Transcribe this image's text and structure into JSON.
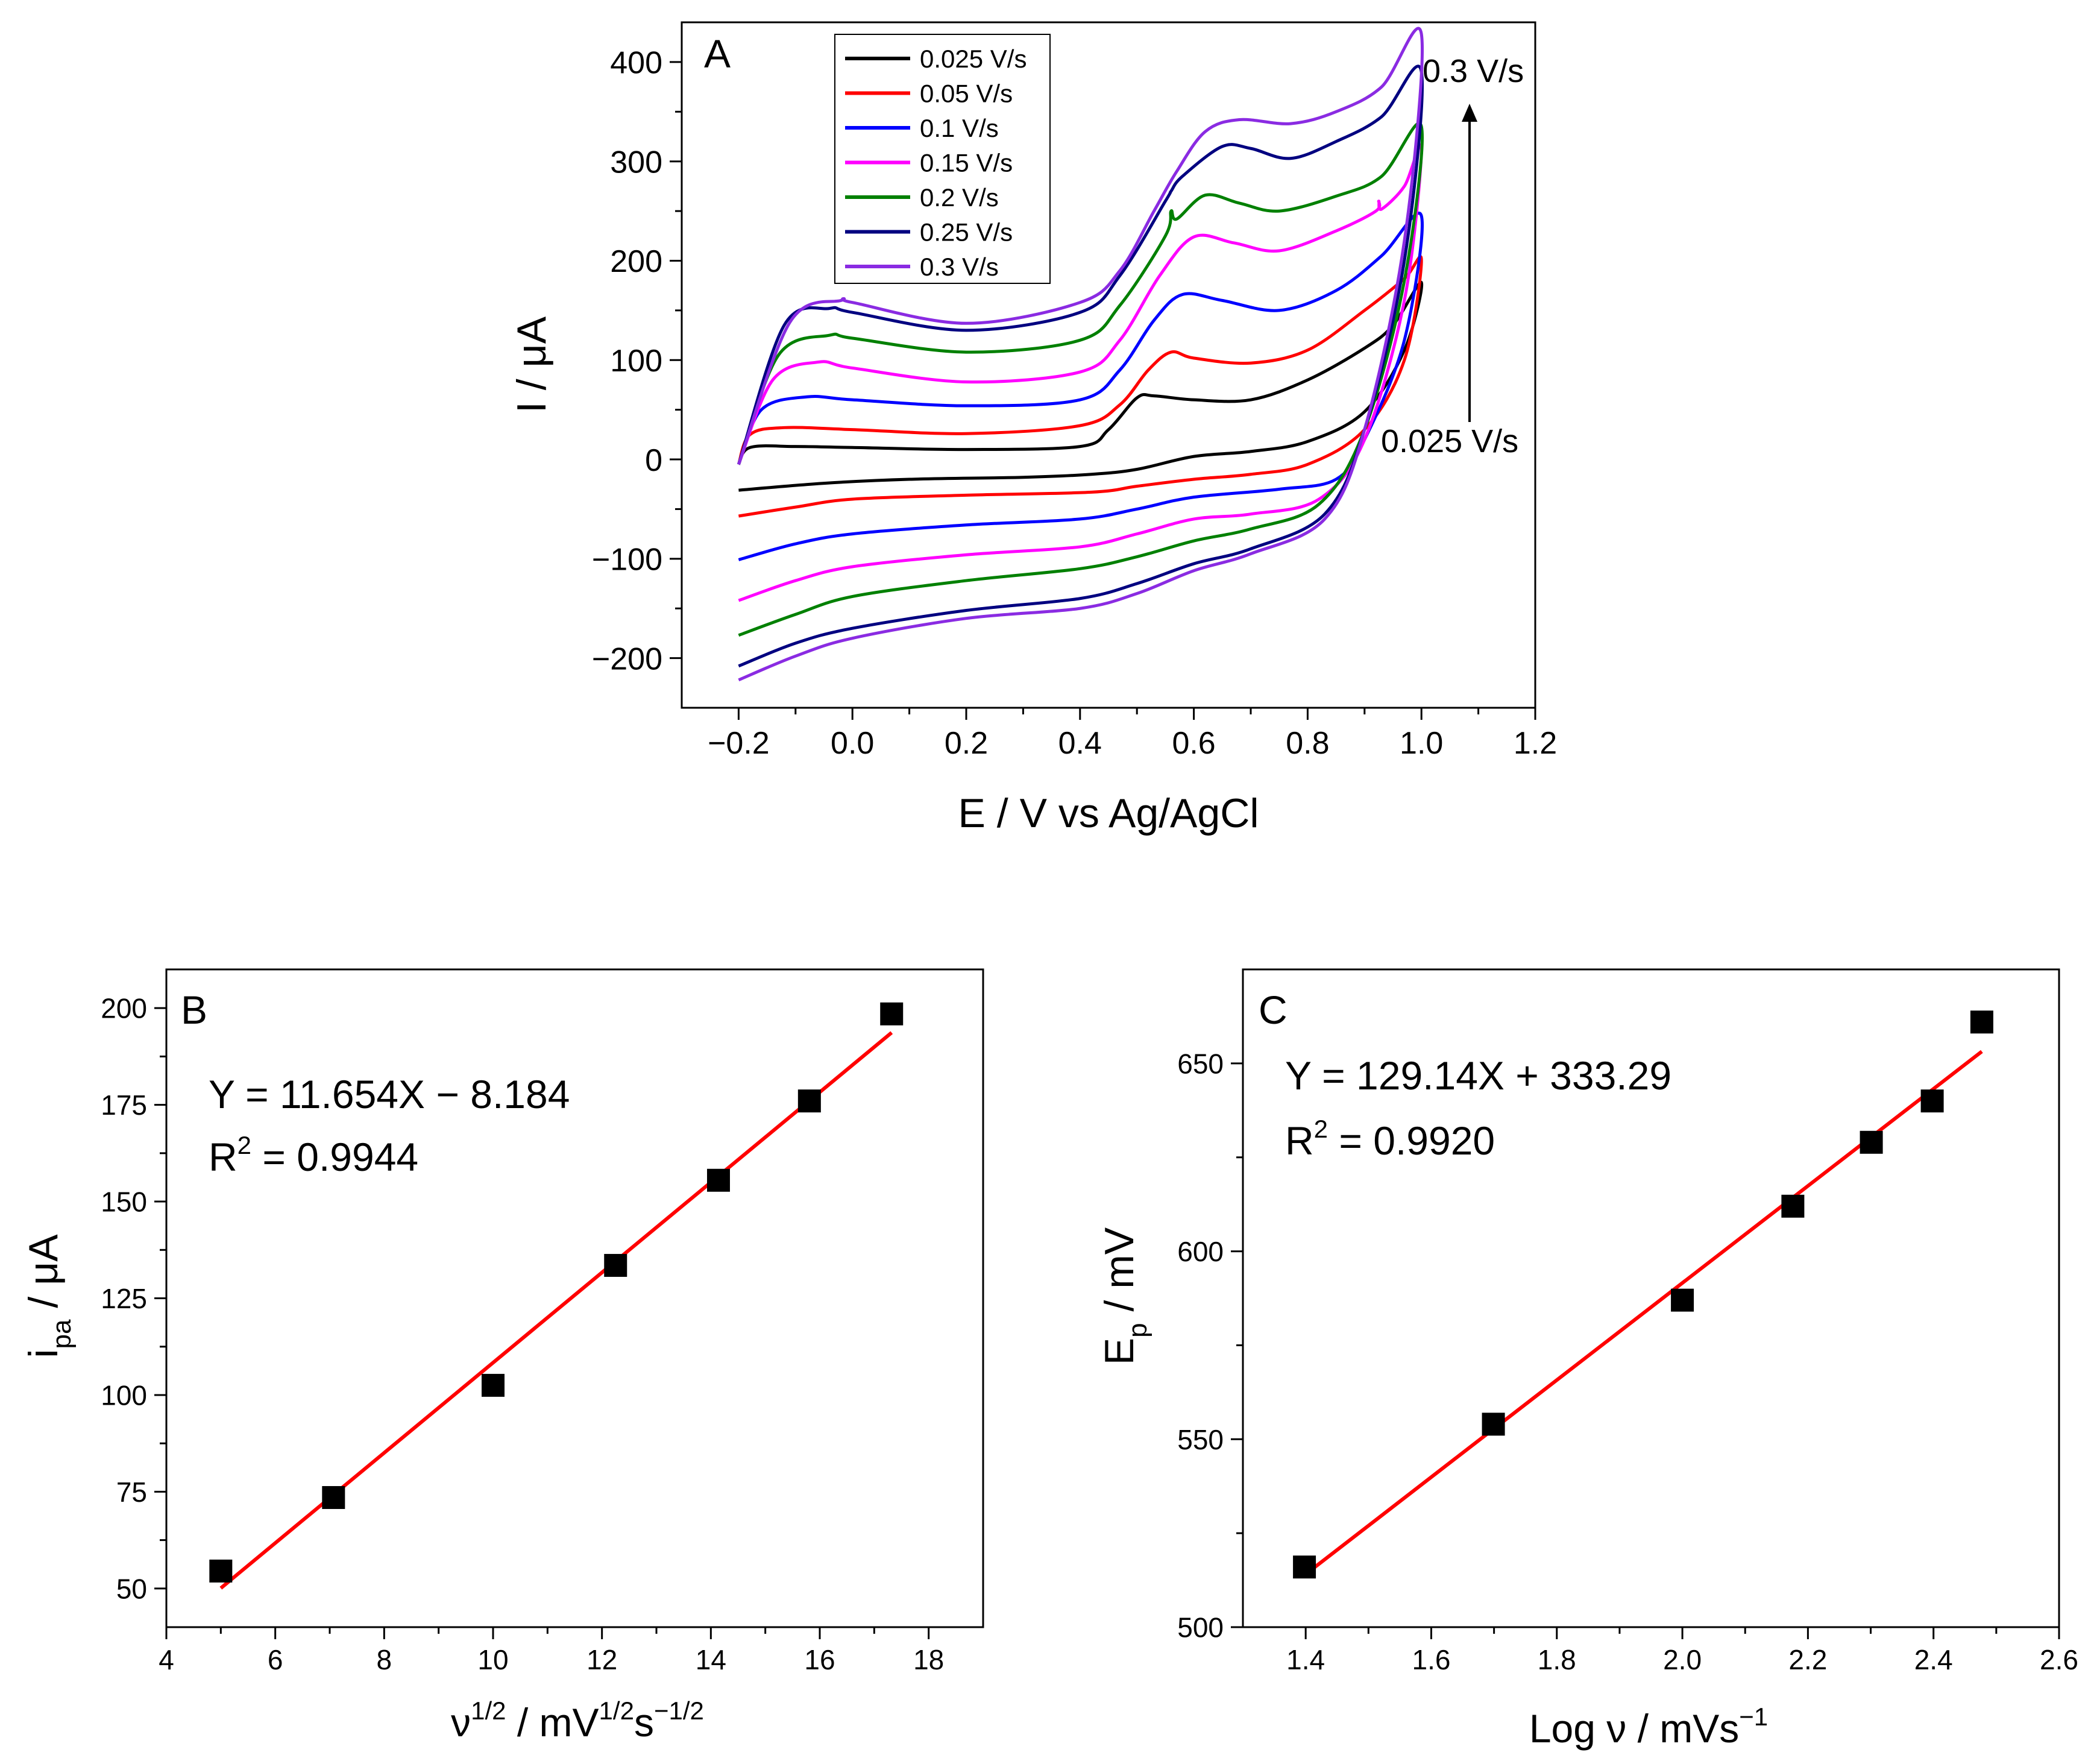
{
  "chart_data": [
    {
      "id": "A",
      "type": "line",
      "panel_label": "A",
      "xlabel": "E / V vs Ag/AgCl",
      "ylabel": "I / μA",
      "xlim": [
        -0.3,
        1.2
      ],
      "ylim": [
        -250,
        440
      ],
      "xticks": [
        -0.2,
        0.0,
        0.2,
        0.4,
        0.6,
        0.8,
        1.0,
        1.2
      ],
      "xtick_labels": [
        "−0.2",
        "0.0",
        "0.2",
        "0.4",
        "0.6",
        "0.8",
        "1.0",
        "1.2"
      ],
      "yticks": [
        -200,
        -100,
        0,
        100,
        200,
        300,
        400
      ],
      "ytick_labels": [
        "−200",
        "−100",
        "0",
        "100",
        "200",
        "300",
        "400"
      ],
      "legend_position": "top-left",
      "annotations": {
        "top": "0.3 V/s",
        "bottom": "0.025 V/s"
      },
      "series": [
        {
          "name": "0.025 V/s",
          "color": "#000000",
          "fwd": [
            [
              -0.2,
              -5
            ],
            [
              -0.18,
              12
            ],
            [
              -0.1,
              13
            ],
            [
              0.0,
              12
            ],
            [
              0.2,
              10
            ],
            [
              0.4,
              13
            ],
            [
              0.45,
              30
            ],
            [
              0.5,
              62
            ],
            [
              0.53,
              64
            ],
            [
              0.6,
              60
            ],
            [
              0.7,
              60
            ],
            [
              0.8,
              80
            ],
            [
              0.9,
              112
            ],
            [
              0.95,
              135
            ],
            [
              1.0,
              178
            ]
          ],
          "rev": [
            [
              1.0,
              178
            ],
            [
              0.97,
              110
            ],
            [
              0.9,
              48
            ],
            [
              0.8,
              18
            ],
            [
              0.7,
              8
            ],
            [
              0.6,
              3
            ],
            [
              0.5,
              -10
            ],
            [
              0.42,
              -15
            ],
            [
              0.3,
              -18
            ],
            [
              0.1,
              -20
            ],
            [
              -0.05,
              -24
            ],
            [
              -0.2,
              -31
            ]
          ]
        },
        {
          "name": "0.05 V/s",
          "color": "#ff0000",
          "fwd": [
            [
              -0.2,
              -5
            ],
            [
              -0.18,
              25
            ],
            [
              -0.12,
              32
            ],
            [
              0.0,
              30
            ],
            [
              0.2,
              26
            ],
            [
              0.4,
              34
            ],
            [
              0.47,
              55
            ],
            [
              0.52,
              90
            ],
            [
              0.56,
              108
            ],
            [
              0.6,
              102
            ],
            [
              0.7,
              97
            ],
            [
              0.8,
              110
            ],
            [
              0.9,
              150
            ],
            [
              0.97,
              182
            ],
            [
              1.0,
              200
            ]
          ],
          "rev": [
            [
              1.0,
              200
            ],
            [
              0.97,
              100
            ],
            [
              0.9,
              30
            ],
            [
              0.8,
              -5
            ],
            [
              0.7,
              -15
            ],
            [
              0.6,
              -20
            ],
            [
              0.5,
              -27
            ],
            [
              0.42,
              -33
            ],
            [
              0.2,
              -36
            ],
            [
              0.0,
              -40
            ],
            [
              -0.1,
              -48
            ],
            [
              -0.2,
              -57
            ]
          ]
        },
        {
          "name": "0.1 V/s",
          "color": "#0000ff",
          "fwd": [
            [
              -0.2,
              -5
            ],
            [
              -0.16,
              50
            ],
            [
              -0.08,
              63
            ],
            [
              0.0,
              60
            ],
            [
              0.2,
              54
            ],
            [
              0.4,
              60
            ],
            [
              0.47,
              90
            ],
            [
              0.53,
              140
            ],
            [
              0.58,
              166
            ],
            [
              0.65,
              160
            ],
            [
              0.75,
              150
            ],
            [
              0.85,
              170
            ],
            [
              0.93,
              205
            ],
            [
              1.0,
              245
            ]
          ],
          "rev": [
            [
              1.0,
              245
            ],
            [
              0.97,
              120
            ],
            [
              0.9,
              20
            ],
            [
              0.85,
              -20
            ],
            [
              0.75,
              -30
            ],
            [
              0.6,
              -38
            ],
            [
              0.5,
              -50
            ],
            [
              0.4,
              -60
            ],
            [
              0.2,
              -66
            ],
            [
              0.0,
              -75
            ],
            [
              -0.1,
              -85
            ],
            [
              -0.2,
              -101
            ]
          ]
        },
        {
          "name": "0.15 V/s",
          "color": "#ff00ff",
          "fwd": [
            [
              -0.2,
              -5
            ],
            [
              -0.14,
              80
            ],
            [
              -0.06,
              98
            ],
            [
              0.0,
              92
            ],
            [
              0.2,
              78
            ],
            [
              0.4,
              88
            ],
            [
              0.47,
              120
            ],
            [
              0.54,
              185
            ],
            [
              0.6,
              224
            ],
            [
              0.67,
              218
            ],
            [
              0.75,
              210
            ],
            [
              0.85,
              230
            ],
            [
              0.92,
              250
            ],
            [
              0.925,
              260
            ],
            [
              0.93,
              252
            ],
            [
              0.97,
              275
            ],
            [
              1.0,
              312
            ]
          ],
          "rev": [
            [
              1.0,
              312
            ],
            [
              0.97,
              160
            ],
            [
              0.9,
              20
            ],
            [
              0.82,
              -40
            ],
            [
              0.7,
              -55
            ],
            [
              0.6,
              -60
            ],
            [
              0.5,
              -75
            ],
            [
              0.4,
              -88
            ],
            [
              0.2,
              -96
            ],
            [
              0.0,
              -108
            ],
            [
              -0.1,
              -122
            ],
            [
              -0.2,
              -142
            ]
          ]
        },
        {
          "name": "0.2 V/s",
          "color": "#008000",
          "fwd": [
            [
              -0.2,
              -5
            ],
            [
              -0.13,
              105
            ],
            [
              -0.04,
              125
            ],
            [
              0.0,
              122
            ],
            [
              0.2,
              108
            ],
            [
              0.4,
              120
            ],
            [
              0.47,
              155
            ],
            [
              0.55,
              225
            ],
            [
              0.56,
              250
            ],
            [
              0.57,
              242
            ],
            [
              0.62,
              266
            ],
            [
              0.68,
              258
            ],
            [
              0.75,
              250
            ],
            [
              0.85,
              265
            ],
            [
              0.93,
              285
            ],
            [
              1.0,
              335
            ]
          ],
          "rev": [
            [
              1.0,
              335
            ],
            [
              0.97,
              180
            ],
            [
              0.9,
              30
            ],
            [
              0.82,
              -45
            ],
            [
              0.7,
              -70
            ],
            [
              0.6,
              -82
            ],
            [
              0.5,
              -98
            ],
            [
              0.4,
              -110
            ],
            [
              0.2,
              -122
            ],
            [
              0.0,
              -138
            ],
            [
              -0.1,
              -156
            ],
            [
              -0.2,
              -177
            ]
          ]
        },
        {
          "name": "0.25 V/s",
          "color": "#000080",
          "fwd": [
            [
              -0.2,
              -5
            ],
            [
              -0.12,
              135
            ],
            [
              -0.04,
              152
            ],
            [
              0.0,
              148
            ],
            [
              0.2,
              130
            ],
            [
              0.4,
              148
            ],
            [
              0.47,
              185
            ],
            [
              0.55,
              260
            ],
            [
              0.56,
              270
            ],
            [
              0.58,
              285
            ],
            [
              0.65,
              315
            ],
            [
              0.7,
              313
            ],
            [
              0.77,
              303
            ],
            [
              0.85,
              320
            ],
            [
              0.93,
              345
            ],
            [
              1.0,
              390
            ]
          ],
          "rev": [
            [
              1.0,
              390
            ],
            [
              0.97,
              200
            ],
            [
              0.9,
              30
            ],
            [
              0.83,
              -55
            ],
            [
              0.7,
              -90
            ],
            [
              0.6,
              -105
            ],
            [
              0.5,
              -125
            ],
            [
              0.4,
              -140
            ],
            [
              0.2,
              -152
            ],
            [
              0.0,
              -170
            ],
            [
              -0.1,
              -185
            ],
            [
              -0.2,
              -208
            ]
          ]
        },
        {
          "name": "0.3 V/s",
          "color": "#8a2be2",
          "fwd": [
            [
              -0.2,
              -5
            ],
            [
              -0.11,
              138
            ],
            [
              -0.02,
              160
            ],
            [
              0.0,
              158
            ],
            [
              0.2,
              137
            ],
            [
              0.4,
              158
            ],
            [
              0.47,
              190
            ],
            [
              0.53,
              250
            ],
            [
              0.57,
              290
            ],
            [
              0.62,
              330
            ],
            [
              0.68,
              342
            ],
            [
              0.77,
              338
            ],
            [
              0.85,
              350
            ],
            [
              0.93,
              375
            ],
            [
              1.0,
              428
            ]
          ],
          "rev": [
            [
              1.0,
              428
            ],
            [
              0.97,
              220
            ],
            [
              0.9,
              30
            ],
            [
              0.83,
              -60
            ],
            [
              0.7,
              -95
            ],
            [
              0.6,
              -112
            ],
            [
              0.5,
              -135
            ],
            [
              0.4,
              -150
            ],
            [
              0.2,
              -160
            ],
            [
              0.0,
              -180
            ],
            [
              -0.1,
              -198
            ],
            [
              -0.2,
              -222
            ]
          ]
        }
      ]
    },
    {
      "id": "B",
      "type": "scatter",
      "panel_label": "B",
      "xlabel": "ν1/2 / mV1/2s−1/2",
      "xlabel_parts": {
        "base": "ν",
        "sup1": "1/2",
        "mid": " / mV",
        "sup2": "1/2",
        "mid2": "s",
        "sup3": "−1/2"
      },
      "ylabel": "ipa / μA",
      "ylabel_parts": {
        "base": "i",
        "sub": "pa",
        "rest": " / μA"
      },
      "xlim": [
        4,
        19
      ],
      "ylim": [
        40,
        210
      ],
      "xticks": [
        4,
        6,
        8,
        10,
        12,
        14,
        16,
        18
      ],
      "yticks": [
        50,
        75,
        100,
        125,
        150,
        175,
        200
      ],
      "x": [
        5.0,
        7.07,
        10.0,
        12.25,
        14.14,
        15.81,
        17.32
      ],
      "y": [
        54.5,
        73.5,
        102.5,
        133.5,
        155.5,
        176.0,
        198.5
      ],
      "fit": {
        "slope": 11.654,
        "intercept": -8.184,
        "x_range": [
          5.0,
          17.32
        ],
        "color": "#ff0000"
      },
      "equation": "Y = 11.654X − 8.184",
      "r2_label": "R",
      "r2_sup": "2",
      "r2_value": " = 0.9944"
    },
    {
      "id": "C",
      "type": "scatter",
      "panel_label": "C",
      "xlabel": "Log ν / mVs−1",
      "xlabel_parts": {
        "base": "Log ν / mVs",
        "sup": "−1"
      },
      "ylabel": "Ep / mV",
      "ylabel_parts": {
        "base": "E",
        "sub": "p",
        "rest": " / mV"
      },
      "xlim": [
        1.3,
        2.6
      ],
      "ylim": [
        500,
        675
      ],
      "xticks": [
        1.4,
        1.6,
        1.8,
        2.0,
        2.2,
        2.4,
        2.6
      ],
      "yticks": [
        500,
        550,
        600,
        650
      ],
      "x": [
        1.398,
        1.699,
        2.0,
        2.176,
        2.301,
        2.398,
        2.477
      ],
      "y": [
        516,
        554,
        587,
        612,
        629,
        640,
        661
      ],
      "fit": {
        "slope": 129.14,
        "intercept": 333.29,
        "x_range": [
          1.398,
          2.477
        ],
        "color": "#ff0000"
      },
      "equation": "Y = 129.14X + 333.29",
      "r2_label": "R",
      "r2_sup": "2",
      "r2_value": " = 0.9920"
    }
  ]
}
